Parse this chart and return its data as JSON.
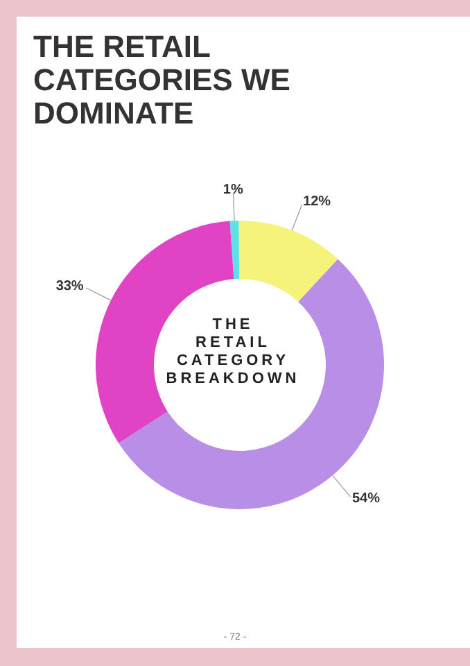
{
  "chart_data": {
    "type": "donut",
    "title": "THE RETAIL CATEGORIES WE DOMINATE",
    "subtitle": "THE RETAIL CATEGORY BREAKDOWN",
    "categories": [
      null,
      null,
      null,
      null
    ],
    "values": [
      1,
      12,
      54,
      33
    ],
    "value_labels": [
      "1%",
      "12%",
      "54%",
      "33%"
    ],
    "colors": [
      "#5ce1e6",
      "#f6f37a",
      "#b98ee6",
      "#e043c4"
    ],
    "annotations": [
      "- 72 -"
    ],
    "legend": false
  }
}
